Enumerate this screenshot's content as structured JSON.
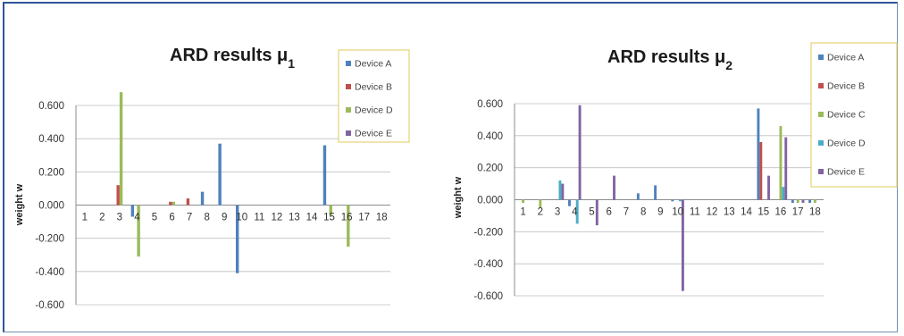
{
  "colors": {
    "Device A": "#4f81bd",
    "Device B": "#c0504d",
    "Device C": "#9bbb59",
    "Device D": "#4bacc6",
    "Device E": "#8064a2",
    "grid": "#bfbfbf",
    "axis": "#8c8c8c",
    "frame": "#2f5597",
    "legend_border": "#e2c95a"
  },
  "chart_data": [
    {
      "type": "bar",
      "title": "ARD results μ",
      "title_sub": "1",
      "ylabel": "weight w",
      "xlabel": "",
      "ylim": [
        -0.6,
        0.6
      ],
      "yticks": [
        "0.600",
        "0.400",
        "0.200",
        "0.000",
        "-0.200",
        "-0.400",
        "-0.600"
      ],
      "ytick_values": [
        0.6,
        0.4,
        0.2,
        0.0,
        -0.2,
        -0.4,
        -0.6
      ],
      "grid": true,
      "legend_position": "top-right",
      "categories": [
        "1",
        "2",
        "3",
        "4",
        "5",
        "6",
        "7",
        "8",
        "9",
        "10",
        "11",
        "12",
        "13",
        "14",
        "15",
        "16",
        "17",
        "18"
      ],
      "series": [
        {
          "name": "Device A",
          "color": "#4f81bd",
          "values": [
            0,
            0,
            0,
            -0.07,
            0,
            0,
            0,
            0.08,
            0.37,
            -0.41,
            0,
            0,
            0,
            0,
            0.36,
            0,
            0,
            0
          ]
        },
        {
          "name": "Device B",
          "color": "#c0504d",
          "values": [
            0,
            0,
            0.12,
            0,
            0,
            0.02,
            0.04,
            0,
            0,
            0,
            0,
            0,
            0,
            0,
            0,
            0,
            0,
            0
          ]
        },
        {
          "name": "Device D",
          "color": "#9bbb59",
          "values": [
            0,
            0,
            0.68,
            -0.31,
            0,
            0.02,
            0,
            0,
            0,
            0,
            0,
            0,
            0,
            0,
            -0.06,
            -0.25,
            0,
            0
          ]
        },
        {
          "name": "Device E",
          "color": "#8064a2",
          "values": [
            0,
            0,
            0,
            0,
            0,
            0,
            0,
            0,
            0,
            0,
            0,
            0,
            0,
            0,
            0,
            0,
            0,
            0
          ]
        }
      ]
    },
    {
      "type": "bar",
      "title": "ARD results μ",
      "title_sub": "2",
      "ylabel": "weight w",
      "xlabel": "",
      "ylim": [
        -0.6,
        0.6
      ],
      "yticks": [
        "0.600",
        "0.400",
        "0.200",
        "0.000",
        "-0.200",
        "-0.400",
        "-0.600"
      ],
      "ytick_values": [
        0.6,
        0.4,
        0.2,
        0.0,
        -0.2,
        -0.4,
        -0.6
      ],
      "grid": true,
      "legend_position": "top-right",
      "categories": [
        "1",
        "2",
        "3",
        "4",
        "5",
        "6",
        "7",
        "8",
        "9",
        "10",
        "11",
        "12",
        "13",
        "14",
        "15",
        "16",
        "17",
        "18"
      ],
      "series": [
        {
          "name": "Device A",
          "color": "#4f81bd",
          "values": [
            0,
            0,
            0,
            -0.04,
            0,
            0,
            0,
            0.04,
            0.09,
            -0.01,
            0,
            0,
            0,
            0,
            0.57,
            0,
            -0.02,
            -0.02
          ]
        },
        {
          "name": "Device B",
          "color": "#c0504d",
          "values": [
            0,
            0,
            0,
            0,
            0,
            0,
            0,
            0,
            0,
            0,
            0,
            0,
            0,
            0,
            0.36,
            0,
            0,
            0
          ]
        },
        {
          "name": "Device C",
          "color": "#9bbb59",
          "values": [
            -0.02,
            -0.05,
            0,
            0,
            0,
            0,
            0,
            0,
            0,
            0,
            0,
            0,
            0,
            0,
            0,
            0.46,
            -0.02,
            -0.02
          ]
        },
        {
          "name": "Device D",
          "color": "#4bacc6",
          "values": [
            0,
            0,
            0.12,
            -0.15,
            0,
            0,
            0,
            0,
            0,
            -0.01,
            0,
            0,
            0,
            0,
            0,
            0.08,
            0,
            0
          ]
        },
        {
          "name": "Device E",
          "color": "#8064a2",
          "values": [
            0,
            0,
            0.1,
            0.59,
            -0.16,
            0.15,
            0,
            0,
            0,
            -0.57,
            0,
            0,
            0,
            0,
            0.15,
            0.39,
            -0.02,
            0
          ]
        }
      ]
    }
  ]
}
